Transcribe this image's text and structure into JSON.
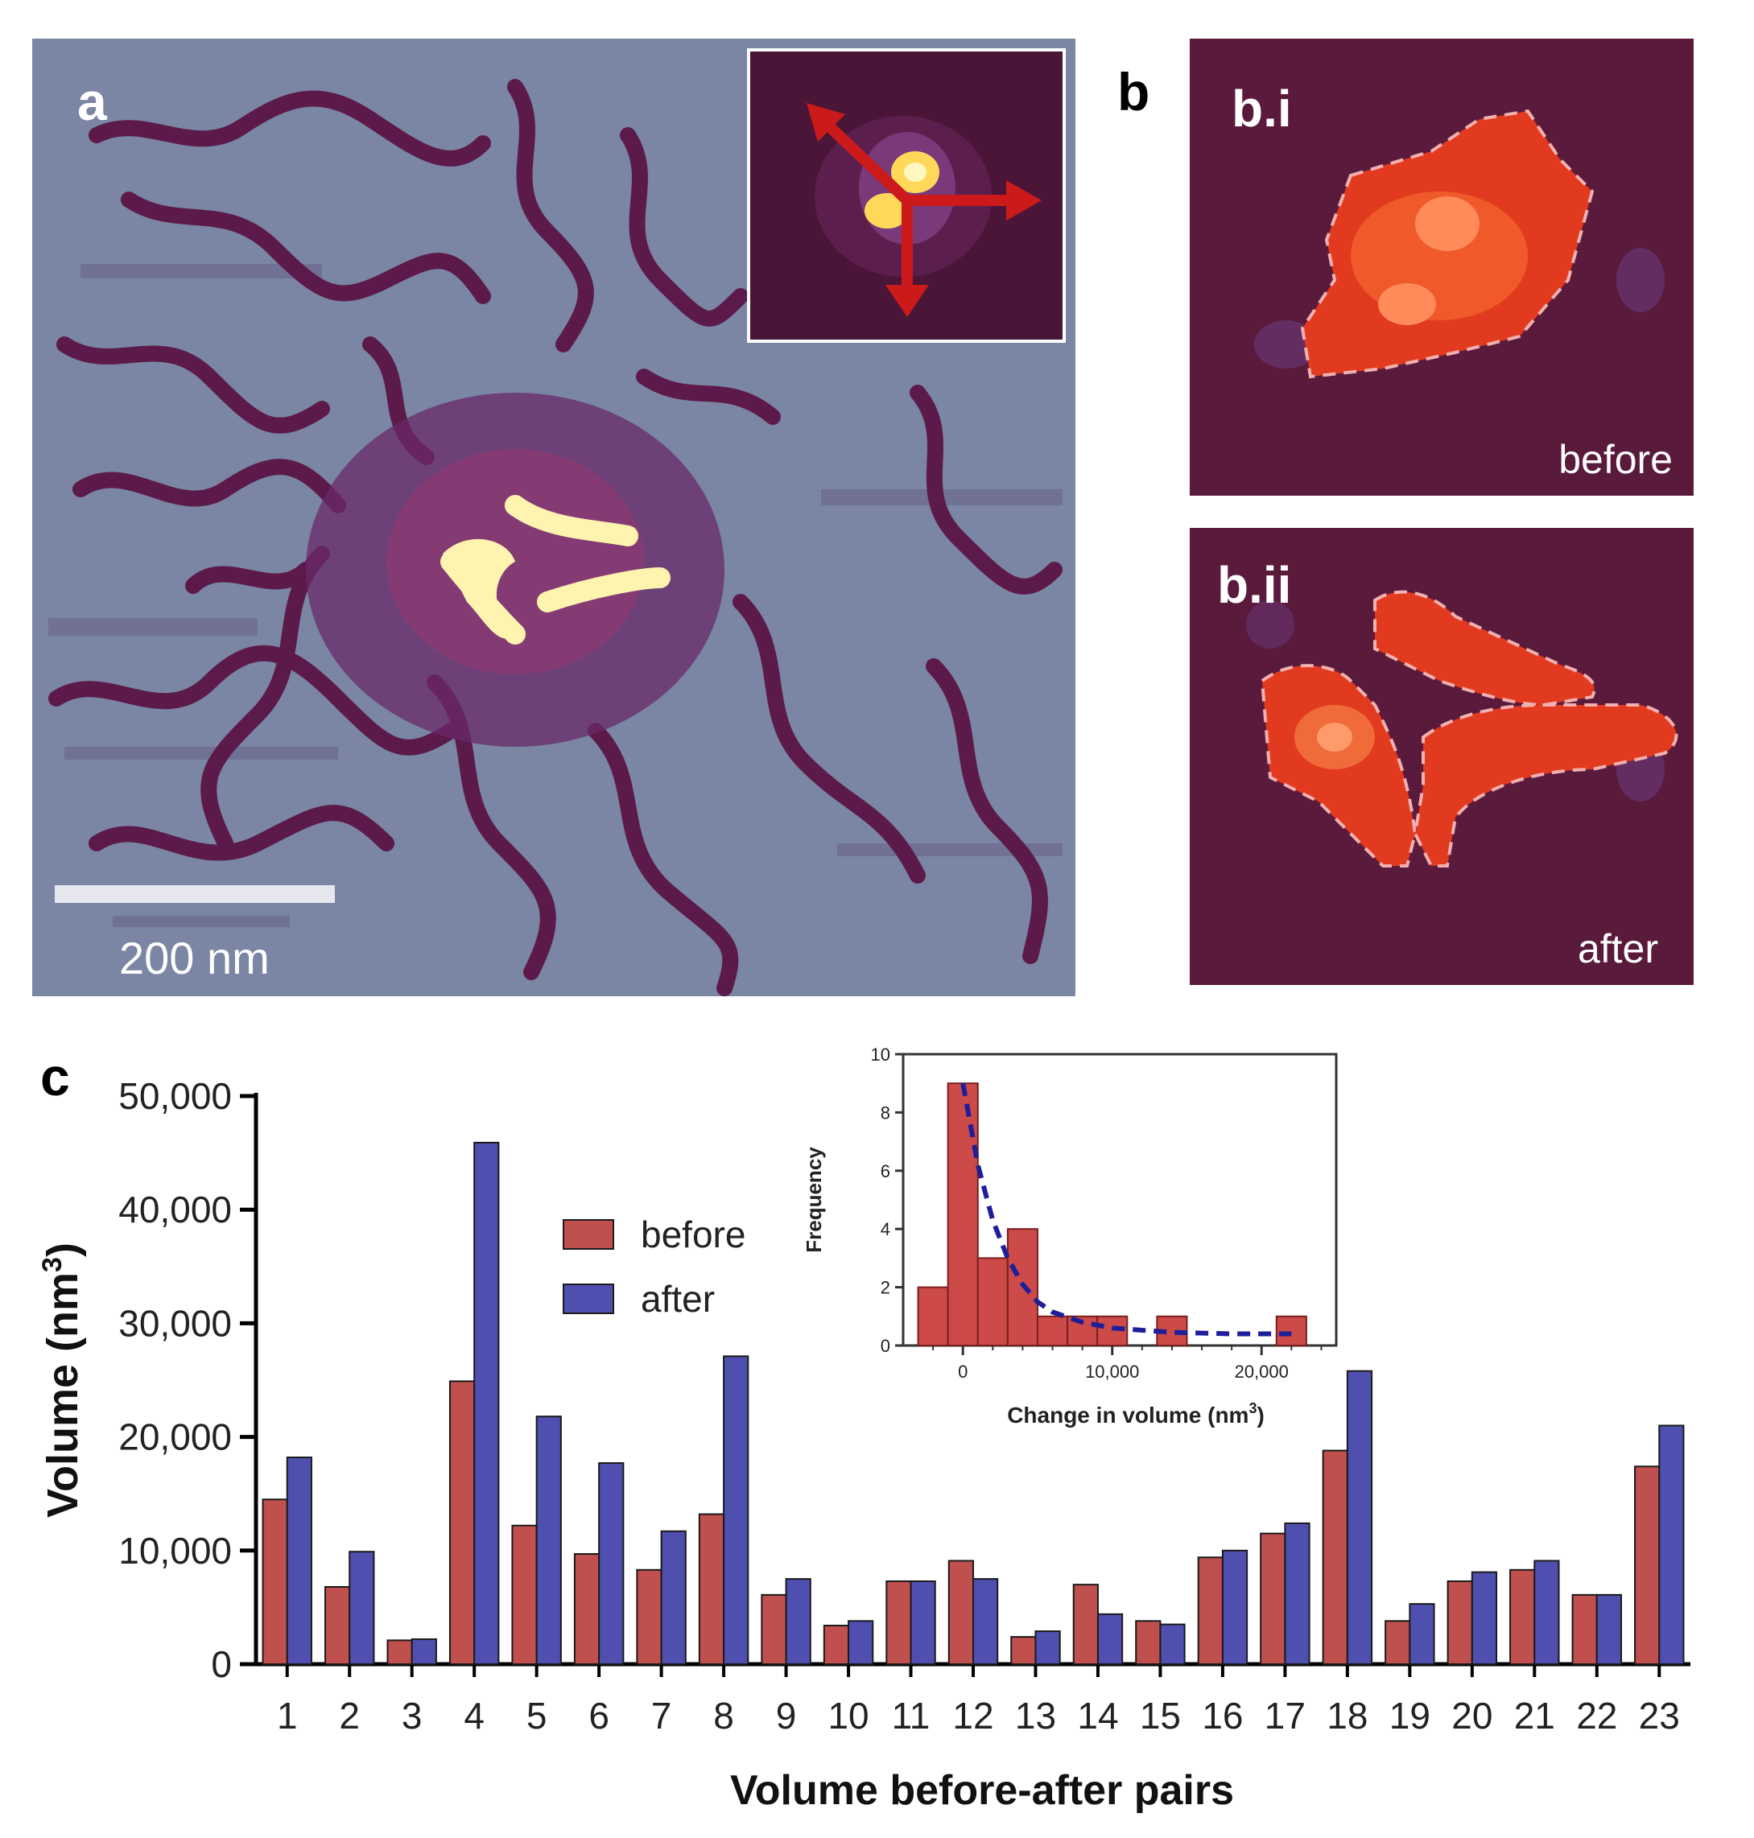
{
  "panel_a": {
    "label": "a",
    "scale_bar": "200 nm"
  },
  "panel_b": {
    "label": "b",
    "sub_i": {
      "label": "b.i",
      "caption": "before"
    },
    "sub_ii": {
      "label": "b.ii",
      "caption": "after"
    }
  },
  "panel_c": {
    "label": "c"
  },
  "colors": {
    "before": "#c0504d",
    "after": "#4f4fb0",
    "afm_background": "#7a86a3",
    "afm_strand": "#5c1a4a",
    "afm_bright": "#fff3b0",
    "fit_line": "#1e1e9a"
  },
  "chart_data": [
    {
      "type": "bar",
      "title": "",
      "xlabel": "Volume before-after pairs",
      "ylabel": "Volume (nm3)",
      "ylim": [
        0,
        50000
      ],
      "yticks": [
        0,
        10000,
        20000,
        30000,
        40000,
        50000
      ],
      "ytick_labels": [
        "0",
        "10,000",
        "20,000",
        "30,000",
        "40,000",
        "50,000"
      ],
      "categories": [
        "1",
        "2",
        "3",
        "4",
        "5",
        "6",
        "7",
        "8",
        "9",
        "10",
        "11",
        "12",
        "13",
        "14",
        "15",
        "16",
        "17",
        "18",
        "19",
        "20",
        "21",
        "22",
        "23"
      ],
      "legend_position": "upper-left-center",
      "series": [
        {
          "name": "before",
          "color": "#c0504d",
          "values": [
            14500,
            6800,
            2100,
            24900,
            12200,
            9700,
            8300,
            13200,
            6100,
            3400,
            7300,
            9100,
            2400,
            7000,
            3800,
            9400,
            11500,
            18800,
            3800,
            7300,
            8300,
            6100,
            17400
          ]
        },
        {
          "name": "after",
          "color": "#4f4fb0",
          "values": [
            18200,
            9900,
            2200,
            45900,
            21800,
            17700,
            11700,
            27100,
            7500,
            3800,
            7300,
            7500,
            2900,
            4400,
            3500,
            10000,
            12400,
            25800,
            5300,
            8100,
            9100,
            6100,
            21000
          ]
        }
      ]
    },
    {
      "type": "bar",
      "subtype": "histogram",
      "title": "",
      "xlabel": "Change in volume (nm3)",
      "ylabel": "Frequency",
      "xlim": [
        -4000,
        25000
      ],
      "ylim": [
        0,
        10
      ],
      "xticks": [
        0,
        10000,
        20000
      ],
      "xtick_labels": [
        "0",
        "10,000",
        "20,000"
      ],
      "yticks": [
        0,
        2,
        4,
        6,
        8,
        10
      ],
      "bin_width": 2000,
      "bins": [
        {
          "start": -3000,
          "count": 2
        },
        {
          "start": -1000,
          "count": 9
        },
        {
          "start": 1000,
          "count": 3
        },
        {
          "start": 3000,
          "count": 4
        },
        {
          "start": 5000,
          "count": 1
        },
        {
          "start": 7000,
          "count": 1
        },
        {
          "start": 9000,
          "count": 1
        },
        {
          "start": 13000,
          "count": 1
        },
        {
          "start": 21000,
          "count": 1
        }
      ],
      "fit": {
        "style": "dashed",
        "points": [
          [
            0,
            9
          ],
          [
            1000,
            6.2
          ],
          [
            2000,
            4.3
          ],
          [
            3000,
            3.0
          ],
          [
            4000,
            2.1
          ],
          [
            5000,
            1.5
          ],
          [
            6000,
            1.15
          ],
          [
            8000,
            0.8
          ],
          [
            10000,
            0.6
          ],
          [
            14000,
            0.45
          ],
          [
            18000,
            0.4
          ],
          [
            22000,
            0.4
          ]
        ]
      }
    }
  ]
}
